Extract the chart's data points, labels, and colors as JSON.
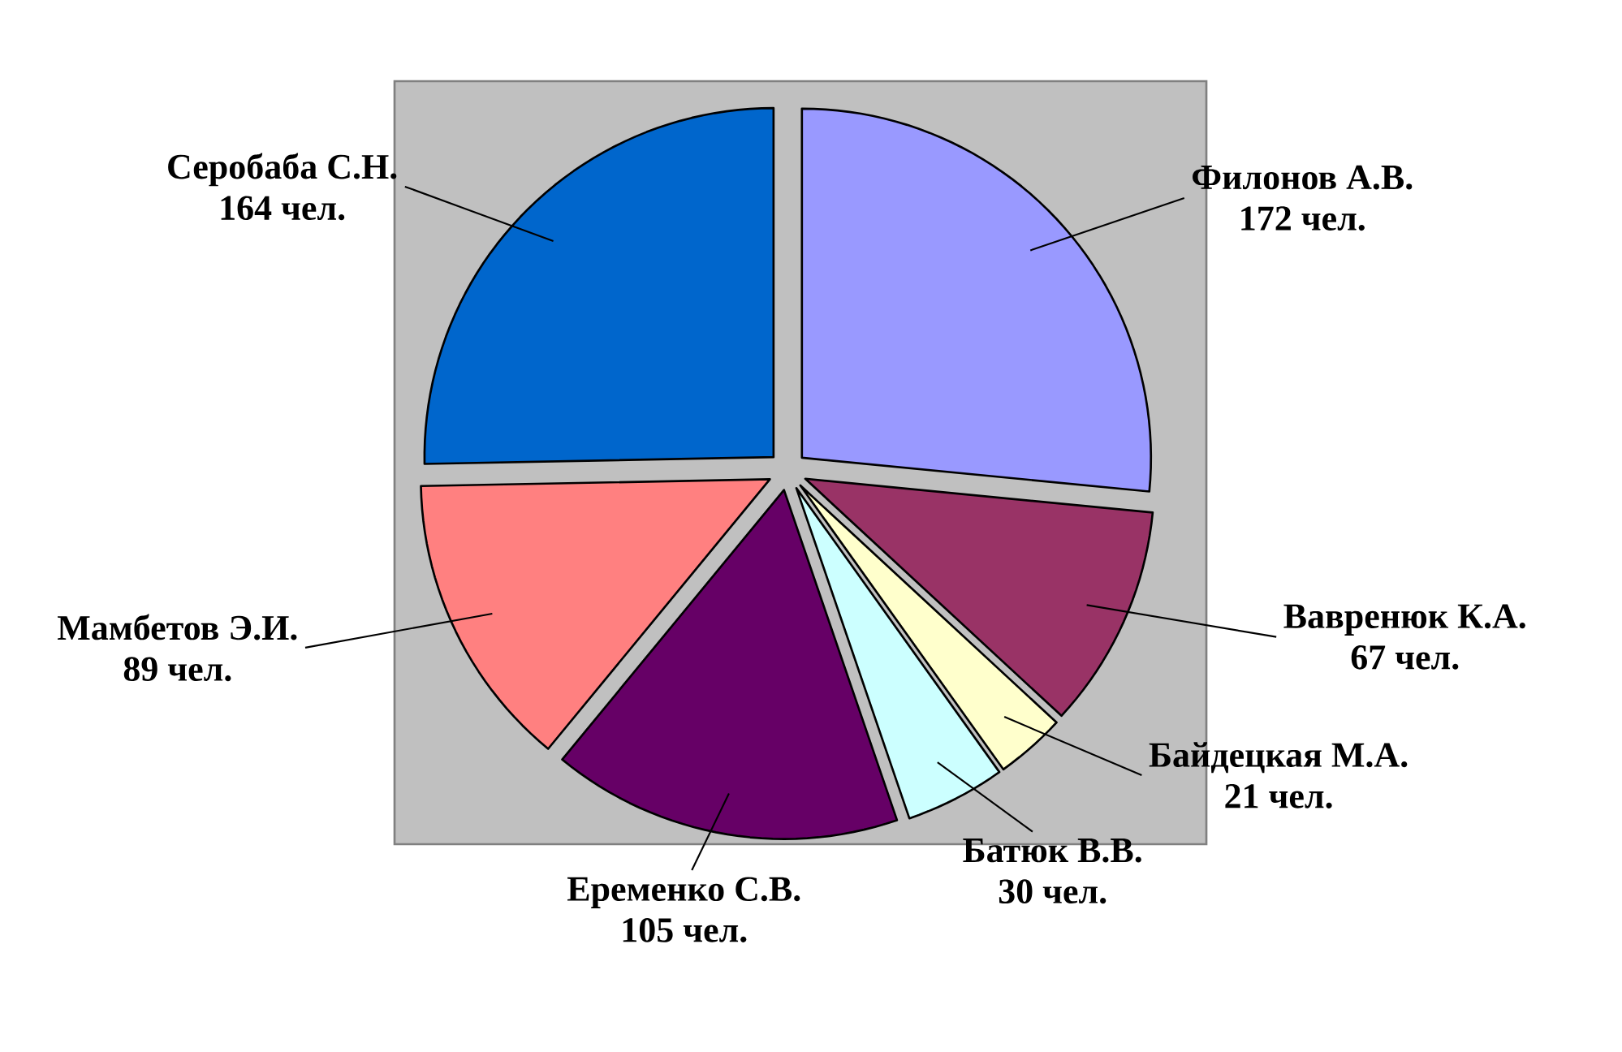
{
  "chart_data": {
    "type": "pie",
    "categories": [
      "Филонов А.В.",
      "Вавренюк К.А.",
      "Байдецкая М.А.",
      "Батюк В.В.",
      "Еременко С.В.",
      "Мамбетов Э.И.",
      "Серобаба С.Н."
    ],
    "values": [
      172,
      67,
      21,
      30,
      105,
      89,
      164
    ],
    "value_labels": [
      "172 чел.",
      "67 чел.",
      "21 чел.",
      "30 чел.",
      "105 чел.",
      "89 чел.",
      "164 чел."
    ],
    "colors": [
      "#9999ff",
      "#993366",
      "#ffffcc",
      "#ccffff",
      "#660066",
      "#ff8080",
      "#0066cc"
    ]
  }
}
